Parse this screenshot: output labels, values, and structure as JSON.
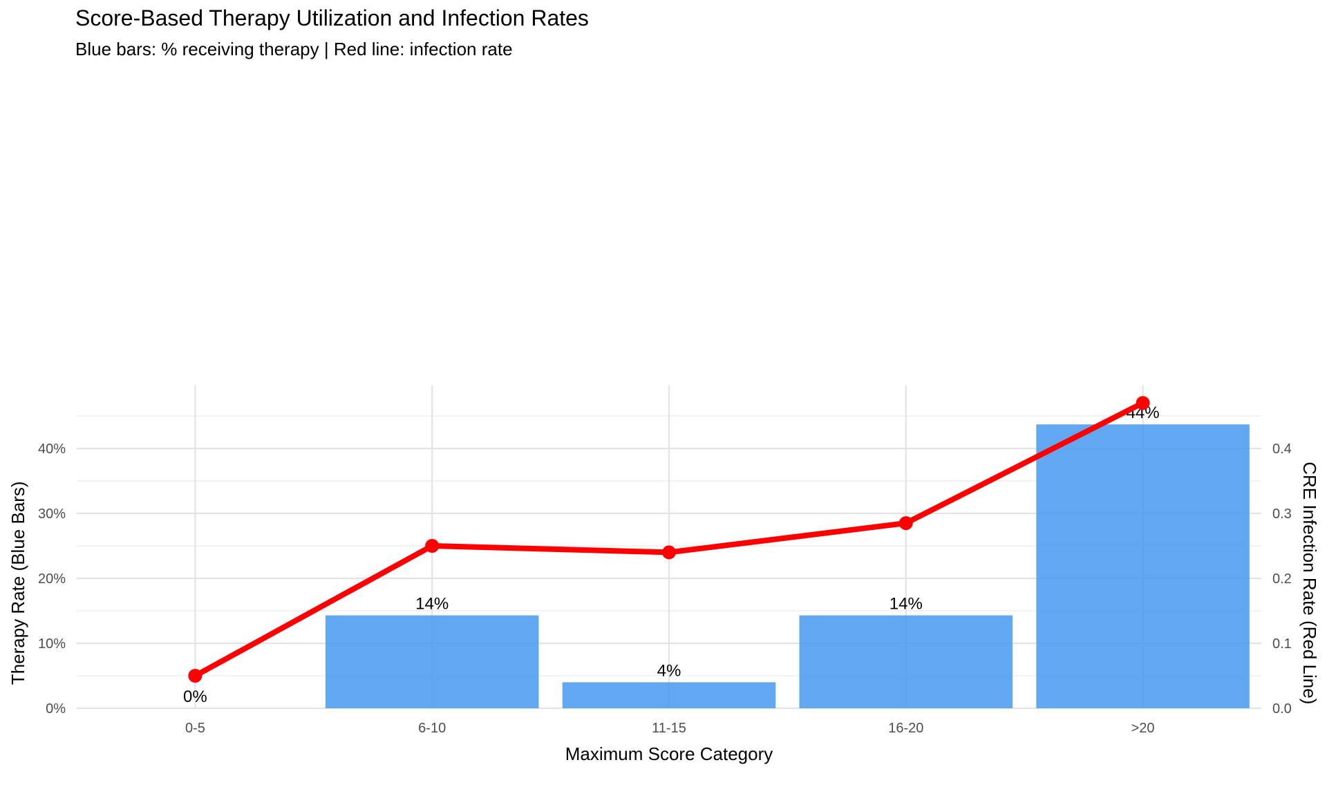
{
  "chart_data": {
    "type": "bar",
    "title": "Score-Based Therapy Utilization and Infection Rates",
    "subtitle": "Blue bars: % receiving therapy | Red line: infection rate",
    "xlabel": "Maximum Score Category",
    "ylabel": "Therapy Rate (Blue Bars)",
    "y2label": "CRE Infection Rate (Red Line)",
    "categories": [
      "0-5",
      "6-10",
      "11-15",
      "16-20",
      ">20"
    ],
    "ylim": [
      0,
      46
    ],
    "y_ticks": [
      0,
      10,
      20,
      30,
      40
    ],
    "y_tick_labels": [
      "0%",
      "10%",
      "20%",
      "30%",
      "40%"
    ],
    "y2lim": [
      0,
      0.46
    ],
    "y2_ticks": [
      0.0,
      0.1,
      0.2,
      0.3,
      0.4
    ],
    "y2_tick_labels": [
      "0.0",
      "0.1",
      "0.2",
      "0.3",
      "0.4"
    ],
    "grid": true,
    "series": [
      {
        "name": "Therapy Rate",
        "type": "bar",
        "axis": "left",
        "color": "#4C9BEF",
        "values": [
          0,
          14.3,
          4.0,
          14.3,
          43.7
        ],
        "labels": [
          "0%",
          "14%",
          "4%",
          "14%",
          "44%"
        ]
      },
      {
        "name": "CRE Infection Rate",
        "type": "line",
        "axis": "right",
        "color": "#FF0000",
        "values": [
          0.05,
          0.25,
          0.24,
          0.285,
          0.47
        ]
      }
    ]
  }
}
